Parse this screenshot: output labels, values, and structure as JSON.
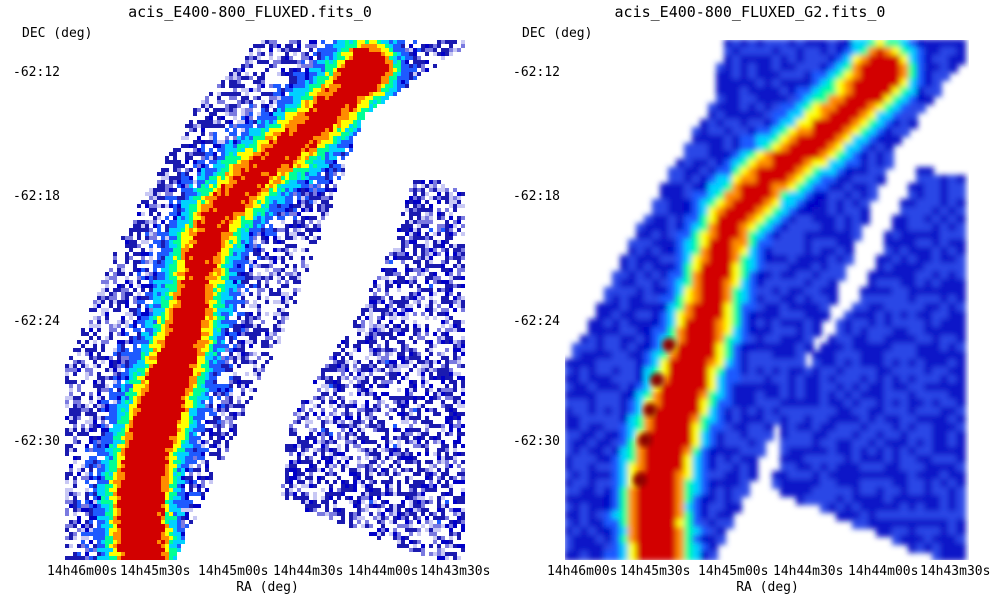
{
  "colorbar_palette": [
    "#0000c8",
    "#1e5aff",
    "#00d2ff",
    "#00ff96",
    "#ffff00",
    "#ff8c00",
    "#d20000"
  ],
  "panels": [
    {
      "title": "acis_E400-800_FLUXED.fits_0",
      "y_axis_label": "DEC (deg)",
      "x_axis_label": "RA (deg)",
      "y_ticks": [
        "-62:12",
        "-62:18",
        "-62:24",
        "-62:30"
      ],
      "x_ticks": [
        "14h46m00s",
        "14h45m30s",
        "14h45m00s",
        "14h44m30s",
        "14h44m00s",
        "14h43m30s"
      ],
      "style": "noisy"
    },
    {
      "title": "acis_E400-800_FLUXED_G2.fits_0",
      "y_axis_label": "DEC (deg)",
      "x_axis_label": "RA (deg)",
      "y_ticks": [
        "-62:12",
        "-62:18",
        "-62:24",
        "-62:30"
      ],
      "x_ticks": [
        "14h46m00s",
        "14h45m30s",
        "14h45m00s",
        "14h44m30s",
        "14h44m00s",
        "14h43m30s"
      ],
      "style": "smoothed"
    }
  ]
}
